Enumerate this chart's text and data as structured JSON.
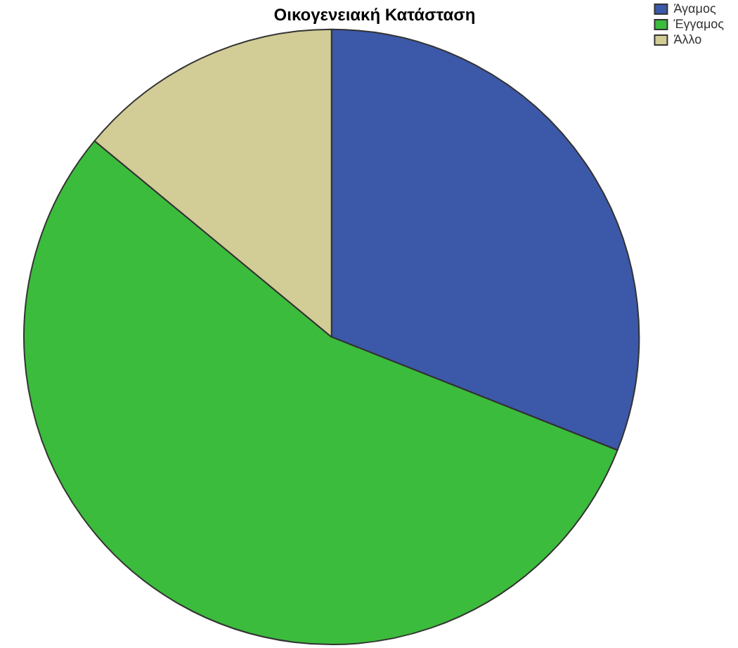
{
  "chart_data": {
    "type": "pie",
    "title": "Οικογενειακή Κατάσταση",
    "categories": [
      "Άγαμος",
      "Έγγαμος",
      "Άλλο"
    ],
    "values": [
      31,
      55,
      14
    ],
    "colors": [
      "#3c58a8",
      "#3cbc3c",
      "#d2cc96"
    ],
    "legend": "top right"
  }
}
